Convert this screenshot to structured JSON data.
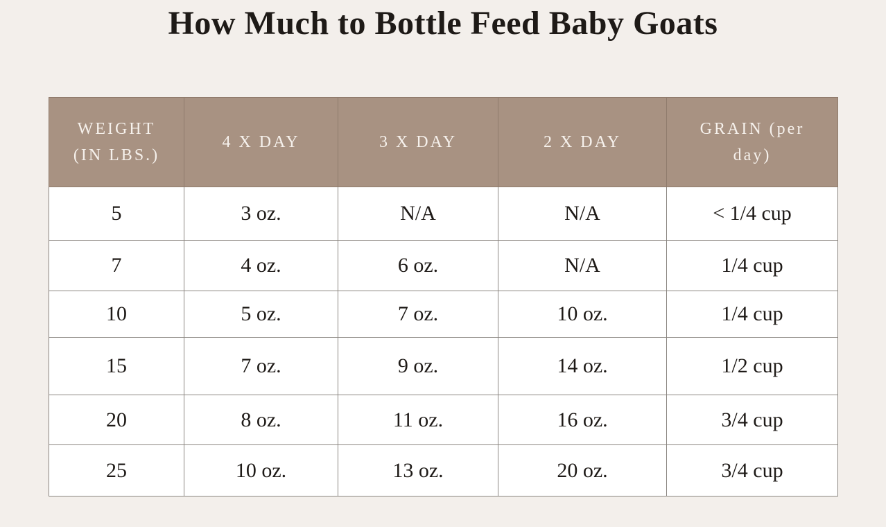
{
  "title": "How Much to Bottle Feed Baby Goats",
  "table": {
    "header": [
      "WEIGHT (IN LBS.)",
      "4 X DAY",
      "3 X DAY",
      "2 X DAY",
      "GRAIN (per day)"
    ],
    "rows": [
      [
        "5",
        "3 oz.",
        "N/A",
        "N/A",
        "< 1/4 cup"
      ],
      [
        "7",
        "4 oz.",
        "6 oz.",
        "N/A",
        "1/4 cup"
      ],
      [
        "10",
        "5 oz.",
        "7 oz.",
        "10 oz.",
        "1/4 cup"
      ],
      [
        "15",
        "7 oz.",
        "9 oz.",
        "14 oz.",
        "1/2 cup"
      ],
      [
        "20",
        "8 oz.",
        "11 oz.",
        "16 oz.",
        "3/4 cup"
      ],
      [
        "25",
        "10 oz.",
        "13 oz.",
        "20 oz.",
        "3/4 cup"
      ]
    ]
  }
}
